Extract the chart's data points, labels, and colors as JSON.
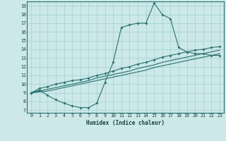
{
  "title": "",
  "xlabel": "Humidex (Indice chaleur)",
  "bg_color": "#cce8e8",
  "line_color": "#2a7070",
  "grid_color": "#a8d4d4",
  "xlim": [
    -0.5,
    23.5
  ],
  "ylim": [
    6.7,
    19.5
  ],
  "xticks": [
    0,
    1,
    2,
    3,
    4,
    5,
    6,
    7,
    8,
    9,
    10,
    11,
    12,
    13,
    14,
    15,
    16,
    17,
    18,
    19,
    20,
    21,
    22,
    23
  ],
  "yticks": [
    7,
    8,
    9,
    10,
    11,
    12,
    13,
    14,
    15,
    16,
    17,
    18,
    19
  ],
  "line1_x": [
    0,
    1,
    2,
    3,
    4,
    5,
    6,
    7,
    8,
    9,
    10,
    11,
    12,
    13,
    14,
    15,
    16,
    17,
    18,
    19,
    20,
    21,
    22,
    23
  ],
  "line1_y": [
    9.0,
    9.3,
    8.7,
    8.2,
    7.8,
    7.5,
    7.3,
    7.3,
    7.8,
    10.2,
    12.5,
    16.5,
    16.8,
    17.0,
    17.0,
    19.3,
    18.0,
    17.5,
    14.2,
    13.7,
    13.5,
    13.5,
    13.3,
    13.3
  ],
  "line2_x": [
    0,
    1,
    2,
    3,
    4,
    5,
    6,
    7,
    8,
    9,
    10,
    11,
    12,
    13,
    14,
    15,
    16,
    17,
    18,
    19,
    20,
    21,
    22,
    23
  ],
  "line2_y": [
    9.0,
    9.5,
    9.7,
    10.0,
    10.2,
    10.4,
    10.5,
    10.7,
    11.0,
    11.2,
    11.5,
    11.8,
    12.0,
    12.3,
    12.5,
    12.8,
    13.1,
    13.3,
    13.5,
    13.7,
    13.9,
    14.0,
    14.2,
    14.3
  ],
  "line3_x": [
    0,
    1,
    2,
    3,
    4,
    5,
    6,
    7,
    8,
    9,
    10,
    11,
    12,
    13,
    14,
    15,
    16,
    17,
    18,
    19,
    20,
    21,
    22,
    23
  ],
  "line3_y": [
    9.0,
    9.2,
    9.4,
    9.6,
    9.8,
    10.0,
    10.2,
    10.4,
    10.7,
    10.9,
    11.1,
    11.3,
    11.5,
    11.8,
    12.0,
    12.2,
    12.5,
    12.7,
    12.9,
    13.1,
    13.3,
    13.5,
    13.7,
    13.9
  ],
  "line4_x": [
    0,
    1,
    2,
    3,
    4,
    5,
    6,
    7,
    8,
    9,
    10,
    11,
    12,
    13,
    14,
    15,
    16,
    17,
    18,
    19,
    20,
    21,
    22,
    23
  ],
  "line4_y": [
    9.0,
    9.1,
    9.2,
    9.4,
    9.6,
    9.8,
    10.0,
    10.2,
    10.4,
    10.6,
    10.8,
    11.0,
    11.2,
    11.4,
    11.6,
    11.9,
    12.1,
    12.3,
    12.5,
    12.7,
    12.9,
    13.1,
    13.3,
    13.5
  ]
}
